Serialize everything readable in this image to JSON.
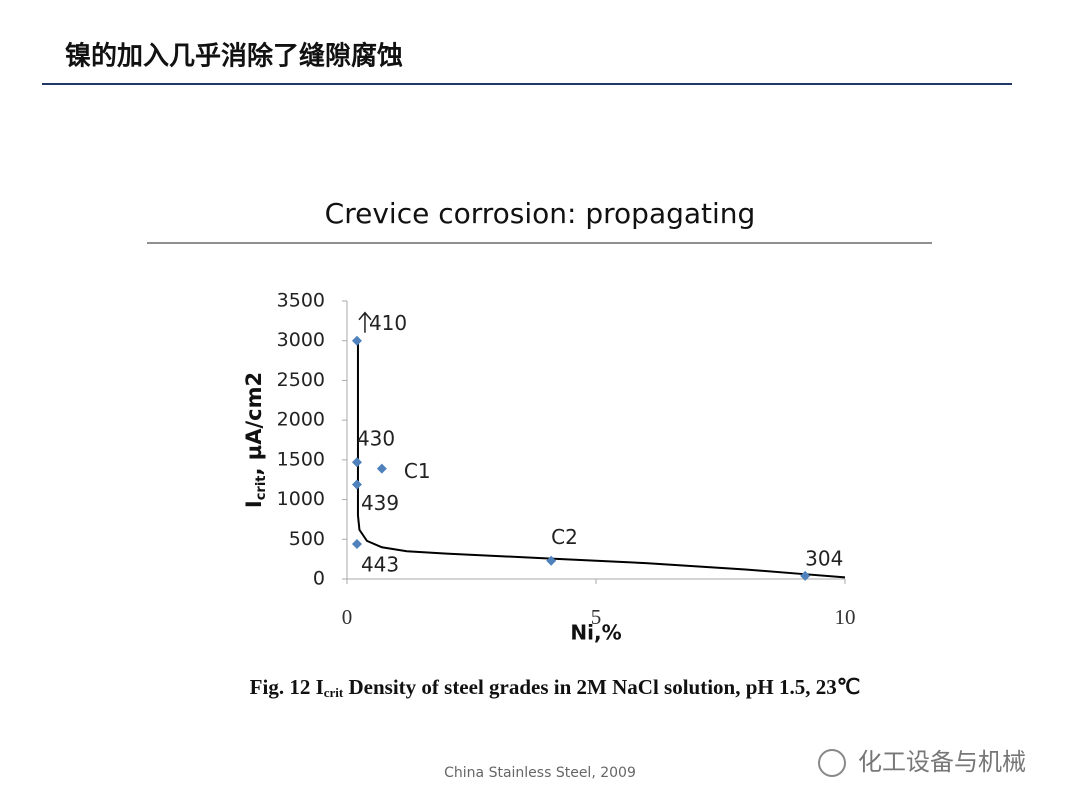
{
  "slide_title": "镍的加入几乎消除了缝隙腐蚀",
  "chart_data": {
    "type": "scatter",
    "title": "Crevice corrosion: propagating",
    "x_label": "Ni,%",
    "y_label": {
      "main": "I",
      "sub": "crit",
      "rest": ", µA/cm2"
    },
    "x": [
      0.2,
      0.2,
      0.2,
      0.2,
      0.7,
      4.1,
      9.2
    ],
    "values": [
      3000,
      1470,
      1190,
      440,
      1390,
      230,
      40
    ],
    "point_labels": [
      "410",
      "430",
      "439",
      "443",
      "C1",
      "C2",
      "304"
    ],
    "color": "#4f81bd",
    "curve": {
      "x": [
        0.22,
        0.22,
        0.25,
        0.4,
        0.7,
        1.2,
        2,
        4,
        6,
        8,
        9,
        10
      ],
      "values": [
        3000,
        800,
        620,
        480,
        400,
        350,
        320,
        260,
        200,
        120,
        70,
        20
      ],
      "color": "#000000"
    },
    "xlim": [
      0,
      10
    ],
    "xticks": [
      0,
      5,
      10
    ],
    "ylim": [
      0,
      3500
    ],
    "yticks": [
      0,
      500,
      1000,
      1500,
      2000,
      2500,
      3000,
      3500
    ],
    "grid": false
  },
  "caption": {
    "prefix": "Fig. 12 I",
    "sub": "crit",
    "rest": " Density of steel grades in 2M NaCl solution, pH 1.5, 23℃"
  },
  "footer": "China Stainless Steel, 2009",
  "watermark": "化工设备与机械"
}
